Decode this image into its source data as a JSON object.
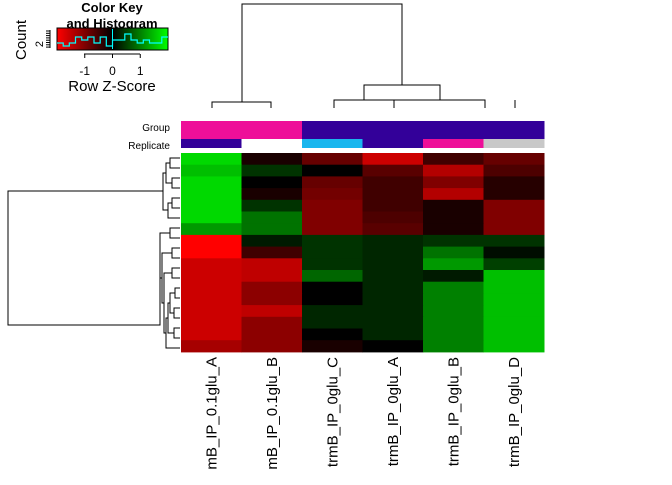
{
  "chart_data": {
    "type": "heatmap",
    "title": "",
    "columns": [
      "mB_IP_0.1glu_A",
      "mB_IP_0.1glu_B",
      "trmB_IP_0glu_C",
      "trmB_IP_0glu_A",
      "trmB_IP_0glu_B",
      "trmB_IP_0glu_D"
    ],
    "annotation_rows": [
      {
        "label": "Group",
        "colors": [
          "#ee0f99",
          "#ee0f99",
          "#330099",
          "#330099",
          "#330099",
          "#330099"
        ]
      },
      {
        "label": "Replicate",
        "colors": [
          "#330099",
          "#ffffff",
          "#1ab6ee",
          "#330099",
          "#ee0f99",
          "#c8c8c8"
        ]
      }
    ],
    "values": [
      [
        1.7,
        -0.2,
        -0.8,
        -1.6,
        -0.5,
        -0.8
      ],
      [
        1.5,
        0.4,
        0.0,
        -0.7,
        -1.4,
        -0.6
      ],
      [
        1.7,
        0.0,
        -0.8,
        -0.5,
        -1.0,
        -0.3
      ],
      [
        1.7,
        -0.2,
        -0.9,
        -0.5,
        -1.4,
        -0.3
      ],
      [
        1.7,
        0.4,
        -1.0,
        -0.5,
        -0.2,
        -1.0
      ],
      [
        1.7,
        0.9,
        -1.0,
        -0.6,
        -0.2,
        -1.0
      ],
      [
        1.2,
        0.9,
        -1.0,
        -0.7,
        -0.2,
        -1.0
      ],
      [
        -2.0,
        0.2,
        0.4,
        0.3,
        0.4,
        0.4
      ],
      [
        -2.0,
        -0.5,
        0.4,
        0.3,
        0.9,
        0.1
      ],
      [
        -1.6,
        -1.5,
        0.4,
        0.3,
        1.2,
        0.5
      ],
      [
        -1.6,
        -1.5,
        0.8,
        0.3,
        0.2,
        1.5
      ],
      [
        -1.6,
        -1.1,
        0.0,
        0.3,
        1.0,
        1.5
      ],
      [
        -1.6,
        -1.1,
        0.0,
        0.3,
        1.0,
        1.5
      ],
      [
        -1.6,
        -1.5,
        0.3,
        0.3,
        1.0,
        1.5
      ],
      [
        -1.6,
        -1.1,
        0.3,
        0.3,
        1.0,
        1.5
      ],
      [
        -1.6,
        -1.1,
        0.0,
        0.3,
        1.0,
        1.5
      ],
      [
        -1.3,
        -1.1,
        -0.2,
        0.0,
        1.0,
        1.5
      ]
    ],
    "color_scale": {
      "low": "#ff0000",
      "mid": "#000000",
      "high": "#00ff00",
      "range": [
        -2,
        2
      ]
    },
    "key": {
      "title_line1": "Color Key",
      "title_line2": "and Histogram",
      "ylabel": "Count",
      "ytick": "2",
      "xlabel": "Row Z-Score",
      "xticks": [
        "-1",
        "0",
        "1"
      ],
      "xtick_values": [
        -1,
        0,
        1
      ],
      "histogram_color": "#00ffff"
    }
  }
}
